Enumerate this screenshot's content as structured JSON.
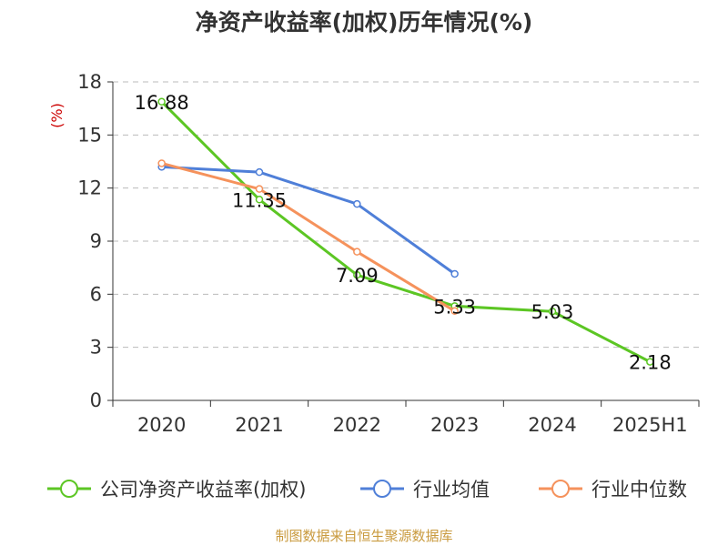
{
  "colors": {
    "roe": "#5cc624",
    "industry_avg": "#4f7fd8",
    "industry_median": "#f5925c",
    "unit": "#cc0000",
    "source": "#c99a3e",
    "grid": "#bbbbbb",
    "axis": "#333333"
  },
  "chart_data": {
    "type": "line",
    "title": "净资产收益率(加权)历年情况(%)",
    "ylabel": "(%)",
    "xlabel": "",
    "categories": [
      "2020",
      "2021",
      "2022",
      "2023",
      "2024",
      "2025H1"
    ],
    "ylim": [
      0,
      18
    ],
    "yticks": [
      0,
      3,
      6,
      9,
      12,
      15,
      18
    ],
    "grid": "horizontal dashed",
    "legend_position": "bottom",
    "series": [
      {
        "name": "公司净资产收益率(加权)",
        "values": [
          16.88,
          11.35,
          7.09,
          5.33,
          5.03,
          2.18
        ],
        "labels": [
          "16.88",
          "11.35",
          "7.09",
          "5.33",
          "5.03",
          "2.18"
        ],
        "color_key": "roe"
      },
      {
        "name": "行业均值",
        "values": [
          13.2,
          12.9,
          11.1,
          7.15,
          null,
          null
        ],
        "color_key": "industry_avg"
      },
      {
        "name": "行业中位数",
        "values": [
          13.4,
          11.95,
          8.4,
          5.05,
          null,
          null
        ],
        "color_key": "industry_median"
      }
    ]
  },
  "source": "制图数据来自恒生聚源数据库"
}
